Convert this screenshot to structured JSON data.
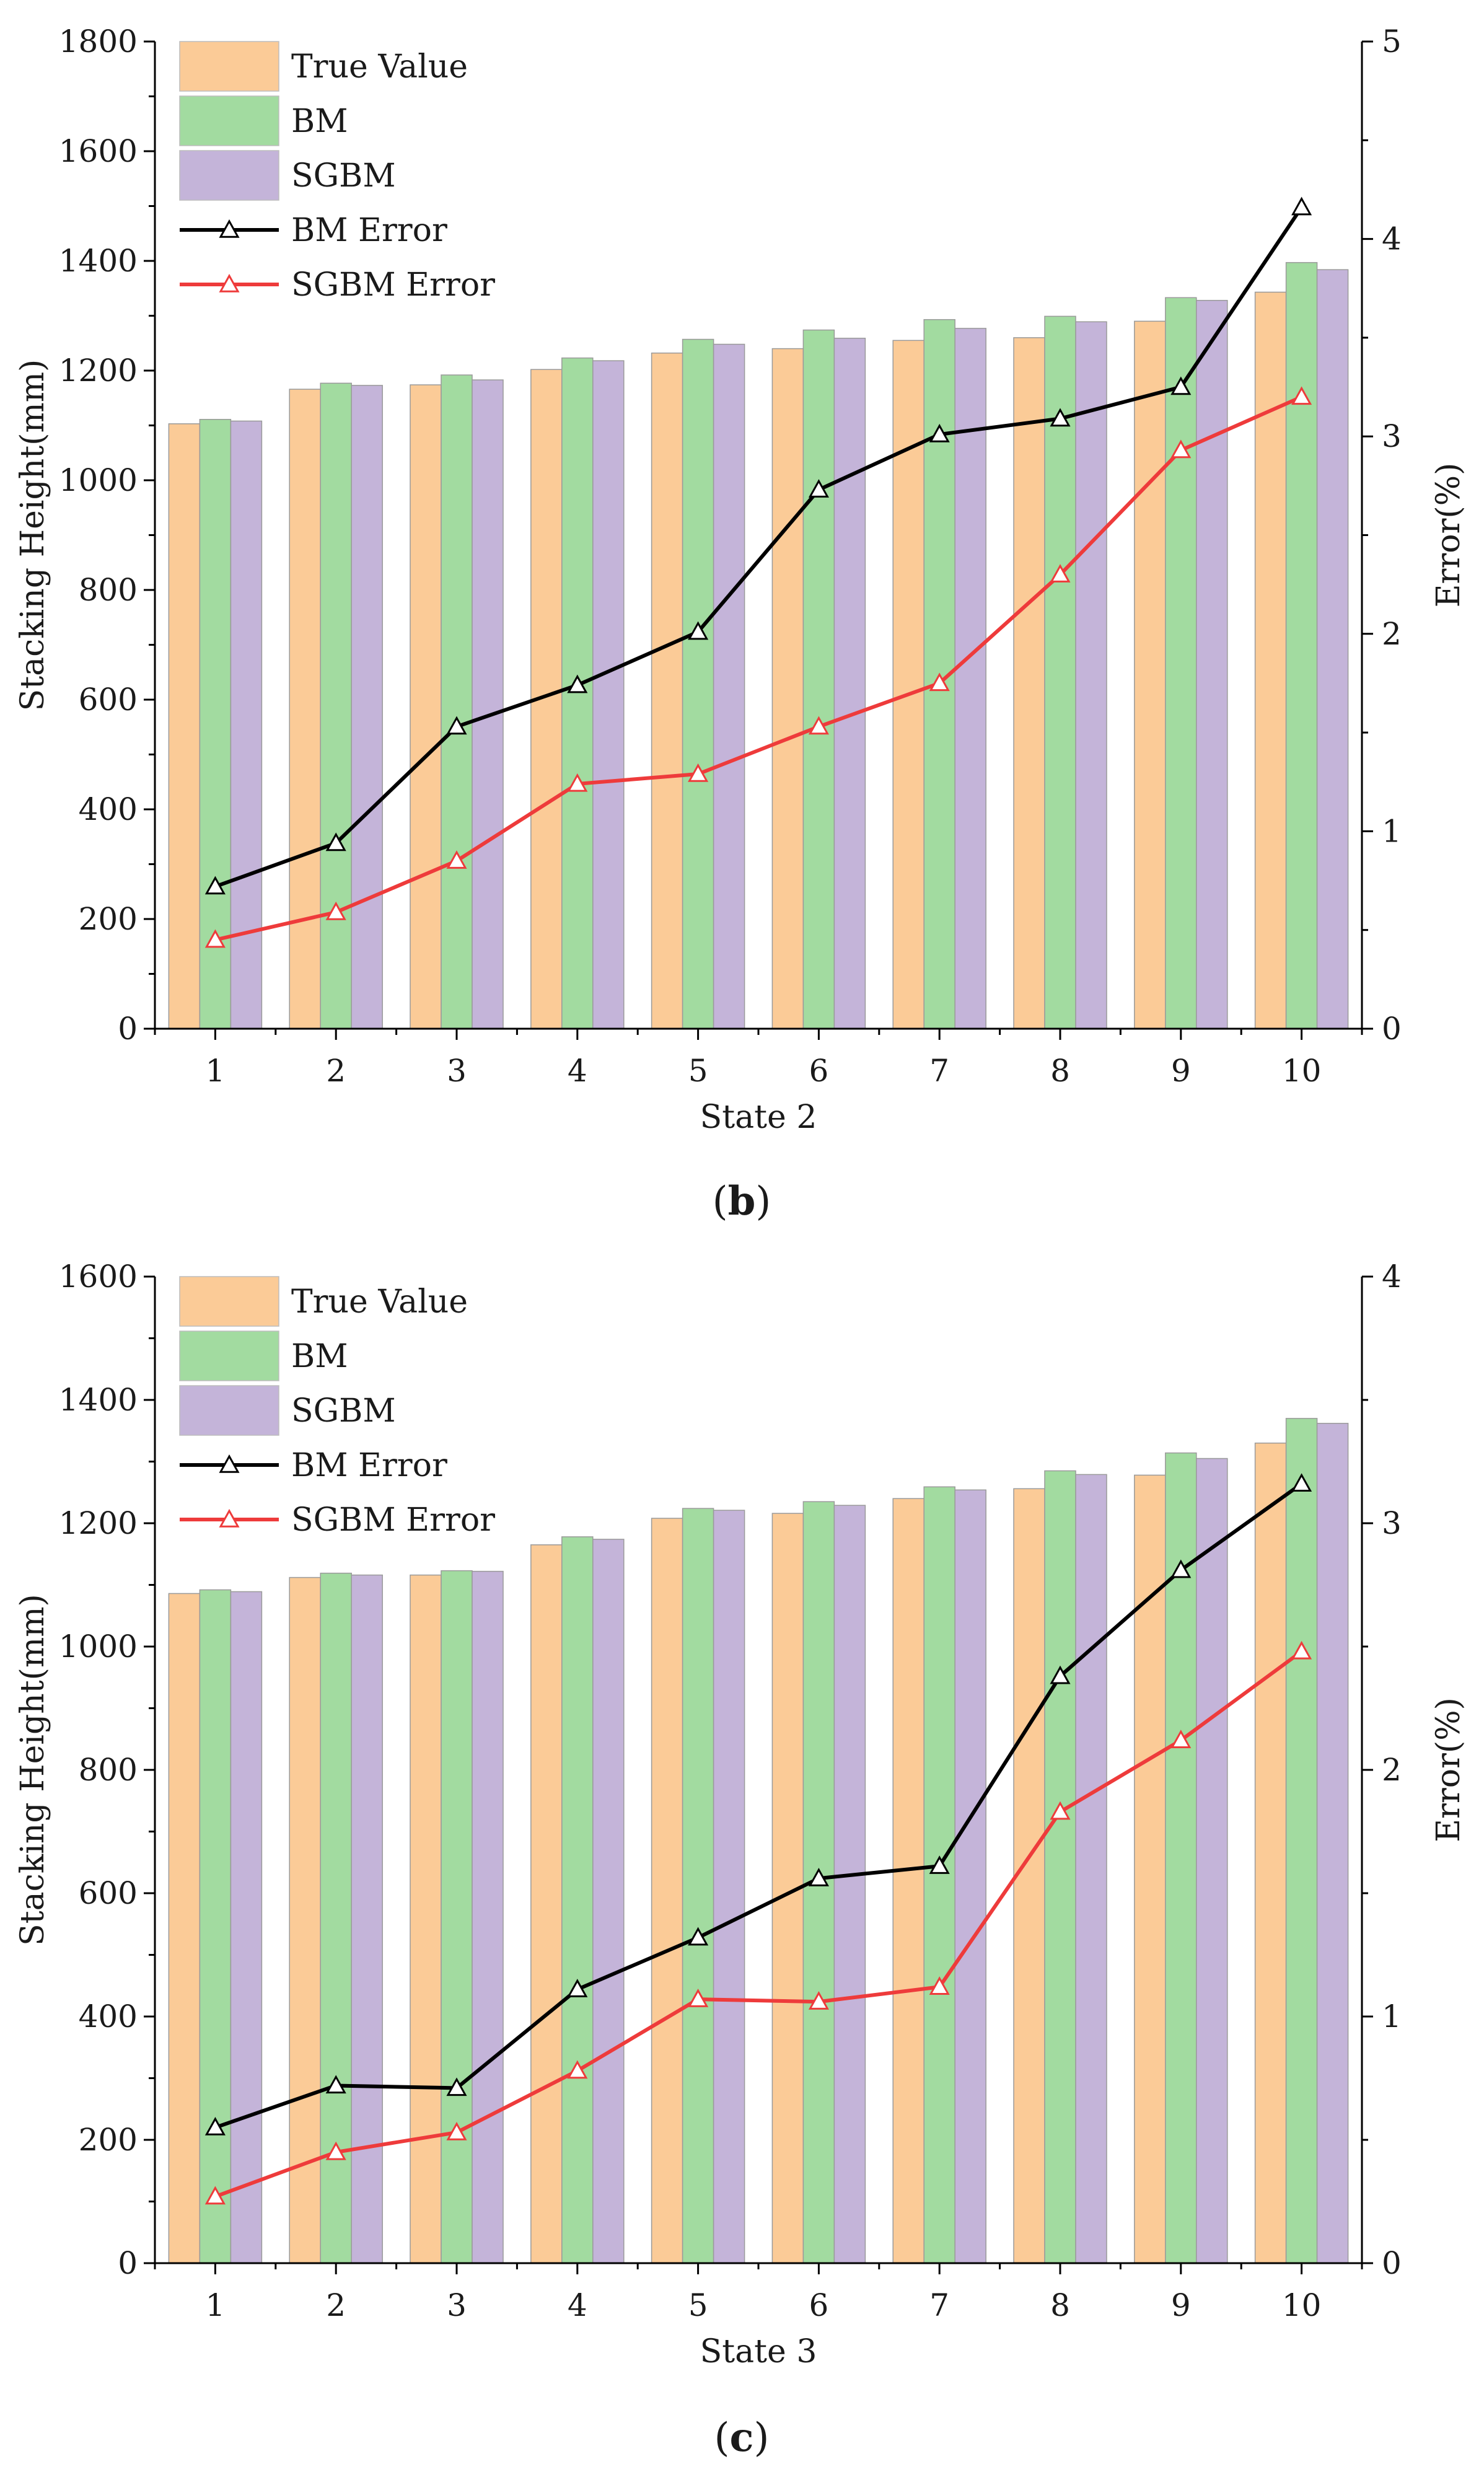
{
  "chart_data": [
    {
      "type": "bar",
      "subtype": "grouped bar with dual-axis line overlay",
      "caption_letter": "b",
      "xlabel": "State 2",
      "ylabel": "Stacking Height(mm)",
      "y2label": "Error(%)",
      "ylim": [
        0,
        1800
      ],
      "y2lim": [
        0,
        5
      ],
      "yticks": [
        0,
        200,
        400,
        600,
        800,
        1000,
        1200,
        1400,
        1600,
        1800
      ],
      "y2ticks": [
        0,
        1,
        2,
        3,
        4,
        5
      ],
      "categories": [
        "1",
        "2",
        "3",
        "4",
        "5",
        "6",
        "7",
        "8",
        "9",
        "10"
      ],
      "legend_position": "top-left",
      "series": [
        {
          "name": "True Value",
          "kind": "bar",
          "axis": "left",
          "color": "#fbcb97",
          "values": [
            1103,
            1166,
            1174,
            1202,
            1232,
            1240,
            1255,
            1260,
            1290,
            1343
          ]
        },
        {
          "name": "BM",
          "kind": "bar",
          "axis": "left",
          "color": "#a2dba0",
          "values": [
            1111,
            1177,
            1192,
            1223,
            1257,
            1274,
            1293,
            1299,
            1333,
            1397
          ]
        },
        {
          "name": "SGBM",
          "kind": "bar",
          "axis": "left",
          "color": "#c4b4d9",
          "values": [
            1108,
            1173,
            1183,
            1218,
            1248,
            1259,
            1277,
            1289,
            1328,
            1384
          ]
        },
        {
          "name": "BM Error",
          "kind": "line",
          "axis": "right",
          "color": "#000000",
          "values": [
            0.72,
            0.94,
            1.53,
            1.74,
            2.01,
            2.73,
            3.01,
            3.09,
            3.25,
            4.16
          ]
        },
        {
          "name": "SGBM Error",
          "kind": "line",
          "axis": "right",
          "color": "#ee3b3b",
          "values": [
            0.45,
            0.59,
            0.85,
            1.24,
            1.29,
            1.53,
            1.75,
            2.3,
            2.93,
            3.2
          ]
        }
      ]
    },
    {
      "type": "bar",
      "subtype": "grouped bar with dual-axis line overlay",
      "caption_letter": "c",
      "xlabel": "State 3",
      "ylabel": "Stacking Height(mm)",
      "y2label": "Error(%)",
      "ylim": [
        0,
        1600
      ],
      "y2lim": [
        0,
        4
      ],
      "yticks": [
        0,
        200,
        400,
        600,
        800,
        1000,
        1200,
        1400,
        1600
      ],
      "y2ticks": [
        0,
        1,
        2,
        3,
        4
      ],
      "categories": [
        "1",
        "2",
        "3",
        "4",
        "5",
        "6",
        "7",
        "8",
        "9",
        "10"
      ],
      "legend_position": "top-left",
      "series": [
        {
          "name": "True Value",
          "kind": "bar",
          "axis": "left",
          "color": "#fbcb97",
          "values": [
            1086,
            1112,
            1116,
            1165,
            1208,
            1216,
            1240,
            1256,
            1278,
            1330
          ]
        },
        {
          "name": "BM",
          "kind": "bar",
          "axis": "left",
          "color": "#a2dba0",
          "values": [
            1092,
            1119,
            1123,
            1178,
            1224,
            1235,
            1259,
            1285,
            1314,
            1370
          ]
        },
        {
          "name": "SGBM",
          "kind": "bar",
          "axis": "left",
          "color": "#c4b4d9",
          "values": [
            1089,
            1116,
            1122,
            1174,
            1221,
            1229,
            1254,
            1279,
            1305,
            1362
          ]
        },
        {
          "name": "BM Error",
          "kind": "line",
          "axis": "right",
          "color": "#000000",
          "values": [
            0.55,
            0.72,
            0.71,
            1.11,
            1.32,
            1.56,
            1.61,
            2.38,
            2.81,
            3.16
          ]
        },
        {
          "name": "SGBM Error",
          "kind": "line",
          "axis": "right",
          "color": "#ee3b3b",
          "values": [
            0.27,
            0.45,
            0.53,
            0.78,
            1.07,
            1.06,
            1.12,
            1.83,
            2.12,
            2.48
          ]
        }
      ]
    }
  ]
}
